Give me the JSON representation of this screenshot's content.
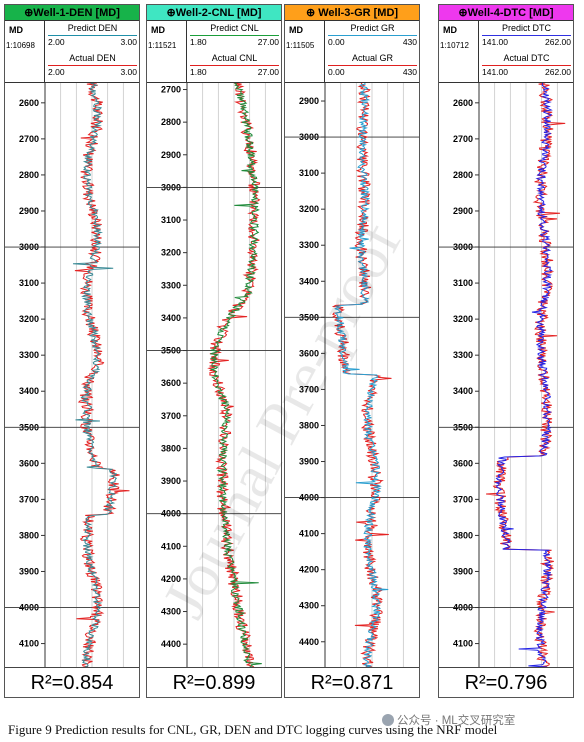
{
  "panels": [
    {
      "title": "⊕Well-1-DEN [MD]",
      "title_bg": "#17b34a",
      "scale": "1:10698",
      "ch1": {
        "name": "Predict DEN",
        "color": "#1f8fa8",
        "lo": "2.00",
        "hi": "3.00"
      },
      "ch2": {
        "name": "Actual DEN",
        "color": "#e02020",
        "lo": "2.00",
        "hi": "3.00"
      },
      "depth_min": 2545,
      "depth_max": 4165,
      "depth_ticks": [
        2600,
        2700,
        2800,
        2900,
        3000,
        3100,
        3200,
        3300,
        3400,
        3500,
        3600,
        3700,
        3800,
        3900,
        4000,
        4100
      ],
      "hlines": [
        3000,
        3500,
        4000
      ],
      "pred_color": "#3a8a96",
      "act_color": "#e42222",
      "r2": "R²=0.854"
    },
    {
      "title": "⊕Well-2-CNL [MD]",
      "title_bg": "#3fe6c2",
      "scale": "1:11521",
      "ch1": {
        "name": "Predict CNL",
        "color": "#1b9e3a",
        "lo": "1.80",
        "hi": "27.00"
      },
      "ch2": {
        "name": "Actual CNL",
        "color": "#e02020",
        "lo": "1.80",
        "hi": "27.00"
      },
      "depth_min": 2680,
      "depth_max": 4470,
      "depth_ticks": [
        2700,
        2800,
        2900,
        3000,
        3100,
        3200,
        3300,
        3400,
        3500,
        3600,
        3700,
        3800,
        3900,
        4000,
        4100,
        4200,
        4300,
        4400
      ],
      "hlines": [
        3000,
        3500,
        4000
      ],
      "pred_color": "#1f8a3a",
      "act_color": "#e42222",
      "r2": "R²=0.899"
    },
    {
      "title": "⊕ Well-3-GR [MD]",
      "title_bg": "#ff9f1a",
      "scale": "1:11505",
      "ch1": {
        "name": "Predict GR",
        "color": "#2a9fd0",
        "lo": "0.00",
        "hi": "430"
      },
      "ch2": {
        "name": "Actual GR",
        "color": "#e02020",
        "lo": "0.00",
        "hi": "430"
      },
      "depth_min": 2850,
      "depth_max": 4470,
      "depth_ticks": [
        2900,
        3000,
        3100,
        3200,
        3300,
        3400,
        3500,
        3600,
        3700,
        3800,
        3900,
        4000,
        4100,
        4200,
        4300,
        4400
      ],
      "hlines": [
        3000,
        3500,
        4000
      ],
      "pred_color": "#2a9fd0",
      "act_color": "#e42222",
      "r2": "R²=0.871"
    },
    {
      "title": "⊕Well-4-DTC [MD]",
      "title_bg": "#ee38ee",
      "scale": "1:10712",
      "ch1": {
        "name": "Predict DTC",
        "color": "#3030e0",
        "lo": "141.00",
        "hi": "262.00"
      },
      "ch2": {
        "name": "Actual DTC",
        "color": "#e02020",
        "lo": "141.00",
        "hi": "262.00"
      },
      "depth_min": 2545,
      "depth_max": 4165,
      "depth_ticks": [
        2600,
        2700,
        2800,
        2900,
        3000,
        3100,
        3200,
        3300,
        3400,
        3500,
        3600,
        3700,
        3800,
        3900,
        4000,
        4100
      ],
      "hlines": [
        3000,
        3500,
        4000
      ],
      "pred_color": "#2323e6",
      "act_color": "#e42222",
      "r2": "R²=0.796"
    }
  ],
  "md_label": "MD",
  "caption": "Figure 9 Prediction results for CNL, GR, DEN and DTC logging curves using the NRF model",
  "watermark": "公众号 · ML交叉研究室",
  "overlay_text": "Journal Pre-proof"
}
